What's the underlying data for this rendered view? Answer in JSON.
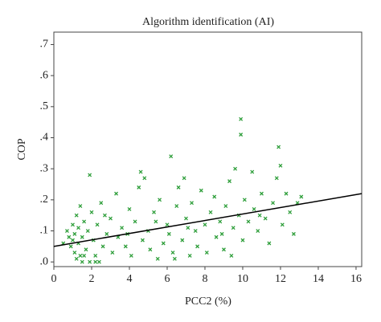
{
  "chart_data": {
    "type": "scatter",
    "title": "Algorithm identification (AI)",
    "x_label": "PCC2 (%)",
    "y_label": "COP",
    "color": "#2e9e3a",
    "line_color": "#000000",
    "x": [
      0.5,
      0.8,
      0.9,
      1.0,
      1.0,
      1.1,
      1.1,
      1.2,
      1.2,
      1.3,
      1.3,
      1.4,
      1.4,
      1.5,
      1.5,
      1.6,
      1.7,
      1.8,
      1.9,
      1.9,
      2.0,
      2.1,
      2.2,
      2.3,
      2.4,
      2.5,
      2.6,
      2.8,
      3.0,
      3.1,
      3.3,
      3.4,
      3.6,
      3.8,
      4.0,
      4.1,
      4.3,
      4.5,
      4.6,
      4.7,
      4.8,
      5.0,
      5.1,
      5.3,
      5.5,
      5.6,
      5.8,
      6.0,
      6.1,
      6.2,
      6.3,
      6.5,
      6.6,
      6.8,
      6.9,
      7.0,
      7.2,
      7.3,
      7.5,
      7.6,
      7.8,
      8.0,
      8.1,
      8.3,
      8.5,
      8.6,
      8.8,
      9.0,
      9.1,
      9.3,
      9.5,
      9.6,
      9.8,
      9.9,
      9.9,
      10.0,
      10.1,
      10.3,
      10.5,
      10.6,
      10.8,
      11.0,
      11.2,
      11.4,
      11.6,
      11.8,
      11.9,
      12.0,
      12.1,
      12.3,
      12.5,
      12.7,
      12.9,
      13.1,
      0.7,
      1.6,
      2.2,
      3.9,
      5.4,
      7.1,
      8.9,
      10.9,
      2.7,
      6.4,
      9.4
    ],
    "values": [
      0.06,
      0.08,
      0.05,
      0.12,
      0.07,
      0.03,
      0.09,
      0.15,
      0.01,
      0.06,
      0.11,
      0.02,
      0.18,
      0.08,
      0.0,
      0.13,
      0.04,
      0.1,
      0.28,
      0.0,
      0.16,
      0.07,
      0.02,
      0.12,
      0.0,
      0.19,
      0.05,
      0.09,
      0.14,
      0.03,
      0.22,
      0.08,
      0.11,
      0.05,
      0.17,
      0.02,
      0.13,
      0.24,
      0.29,
      0.07,
      0.27,
      0.1,
      0.04,
      0.16,
      0.01,
      0.2,
      0.06,
      0.12,
      0.09,
      0.34,
      0.03,
      0.18,
      0.24,
      0.07,
      0.27,
      0.14,
      0.02,
      0.19,
      0.1,
      0.05,
      0.23,
      0.12,
      0.03,
      0.16,
      0.21,
      0.08,
      0.13,
      0.04,
      0.18,
      0.26,
      0.11,
      0.3,
      0.15,
      0.46,
      0.41,
      0.07,
      0.2,
      0.13,
      0.29,
      0.17,
      0.1,
      0.22,
      0.14,
      0.06,
      0.19,
      0.27,
      0.37,
      0.31,
      0.12,
      0.22,
      0.16,
      0.09,
      0.19,
      0.21,
      0.1,
      0.02,
      0.0,
      0.09,
      0.13,
      0.11,
      0.09,
      0.15,
      0.15,
      0.01,
      0.02
    ],
    "fit_line": {
      "x": [
        0,
        16.3
      ],
      "y": [
        0.05,
        0.22
      ]
    },
    "xlim": [
      0,
      16.3
    ],
    "ylim": [
      -0.015,
      0.74
    ],
    "xticks": [
      0,
      2,
      4,
      6,
      8,
      10,
      12,
      14,
      16
    ],
    "yticks": [
      {
        "value": 0,
        "label": ".0"
      },
      {
        "value": 0.1,
        "label": ".1"
      },
      {
        "value": 0.2,
        "label": ".2"
      },
      {
        "value": 0.3,
        "label": ".3"
      },
      {
        "value": 0.4,
        "label": ".4"
      },
      {
        "value": 0.5,
        "label": ".5"
      },
      {
        "value": 0.6,
        "label": ".6"
      },
      {
        "value": 0.7,
        "label": ".7"
      }
    ],
    "grid": false
  }
}
